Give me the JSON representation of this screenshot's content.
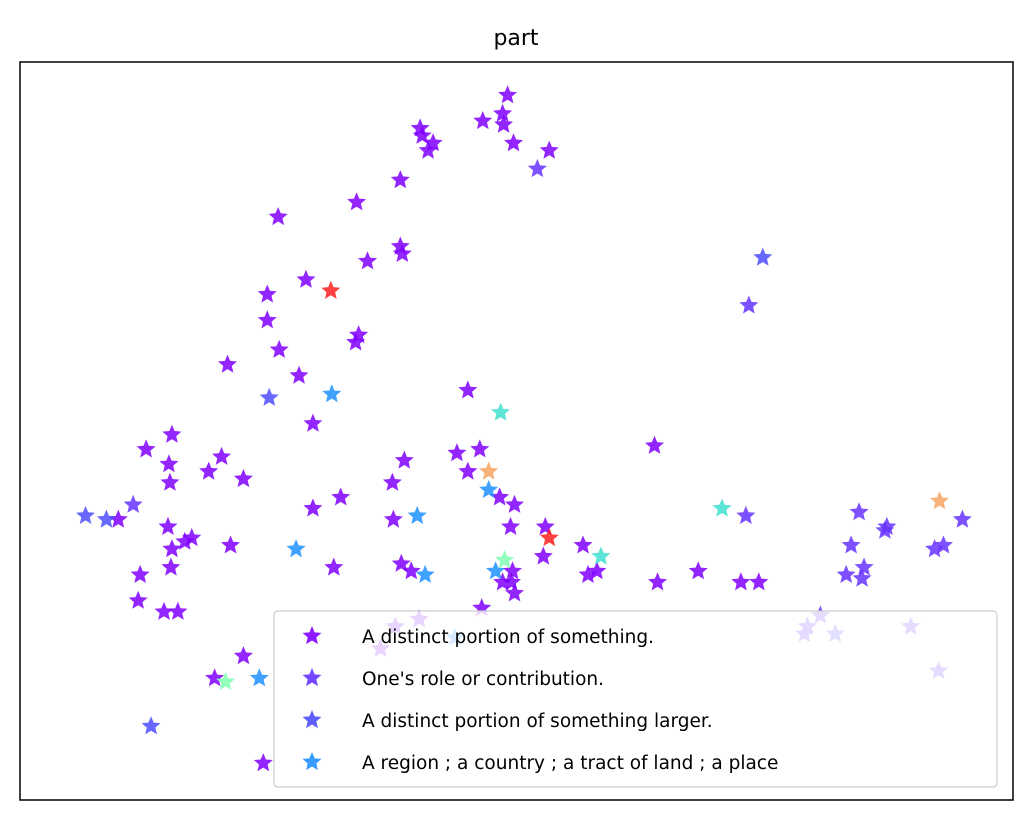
{
  "chart_data": {
    "type": "scatter",
    "title": "part",
    "xlabel": "",
    "ylabel": "",
    "axes_visible": false,
    "grid": false,
    "legend_position": "bottom-right",
    "xlim": [
      0,
      100
    ],
    "ylim": [
      0,
      100
    ],
    "series": [
      {
        "name": "A distinct portion of something.",
        "color": "#8000ff",
        "marker": "star",
        "points": [
          [
            49.1,
            95.5
          ],
          [
            48.7,
            91.5
          ],
          [
            46.6,
            92
          ],
          [
            48.6,
            93
          ],
          [
            40.3,
            91
          ],
          [
            40.5,
            90
          ],
          [
            41.6,
            89
          ],
          [
            41.1,
            88
          ],
          [
            49.7,
            89
          ],
          [
            53.3,
            88
          ],
          [
            38.3,
            84
          ],
          [
            33.9,
            81
          ],
          [
            26,
            79
          ],
          [
            38.3,
            75
          ],
          [
            38.5,
            74
          ],
          [
            35,
            73
          ],
          [
            28.8,
            70.5
          ],
          [
            24.9,
            68.5
          ],
          [
            24.9,
            65
          ],
          [
            33.8,
            62
          ],
          [
            34.1,
            63
          ],
          [
            26.1,
            61
          ],
          [
            20.9,
            59
          ],
          [
            28.1,
            57.5
          ],
          [
            45.1,
            55.5
          ],
          [
            15.3,
            49.5
          ],
          [
            12.7,
            47.5
          ],
          [
            20.3,
            46.5
          ],
          [
            15,
            45.5
          ],
          [
            19,
            44.5
          ],
          [
            22.5,
            43.5
          ],
          [
            15.1,
            43
          ],
          [
            44,
            47
          ],
          [
            46.3,
            47.5
          ],
          [
            45.1,
            44.5
          ],
          [
            38.7,
            46
          ],
          [
            37.5,
            43
          ],
          [
            48.3,
            41
          ],
          [
            49.8,
            40
          ],
          [
            32.3,
            41
          ],
          [
            29.5,
            39.5
          ],
          [
            37.6,
            38
          ],
          [
            49.4,
            37
          ],
          [
            52.9,
            37
          ],
          [
            9.9,
            38
          ],
          [
            14.9,
            37
          ],
          [
            16.6,
            35
          ],
          [
            17.3,
            35.5
          ],
          [
            21.2,
            34.5
          ],
          [
            15.3,
            34
          ],
          [
            12.1,
            30.5
          ],
          [
            31.6,
            31.5
          ],
          [
            38.4,
            32
          ],
          [
            39.4,
            31
          ],
          [
            49.6,
            31
          ],
          [
            15.2,
            31.5
          ],
          [
            11.9,
            27
          ],
          [
            14.5,
            25.5
          ],
          [
            15.9,
            25.5
          ],
          [
            40.2,
            24.5
          ],
          [
            37.8,
            23.5
          ],
          [
            49.5,
            29.5
          ],
          [
            49.8,
            28
          ],
          [
            48.6,
            29.5
          ],
          [
            52.7,
            33
          ],
          [
            64.2,
            29.5
          ],
          [
            56.7,
            34.5
          ],
          [
            57.2,
            30.5
          ],
          [
            58.1,
            31
          ],
          [
            63.9,
            48
          ],
          [
            46.5,
            26
          ],
          [
            68.3,
            31
          ],
          [
            72.6,
            29.5
          ],
          [
            74.4,
            29.5
          ],
          [
            29.5,
            51
          ],
          [
            36.3,
            20.5
          ],
          [
            22.5,
            19.5
          ],
          [
            19.6,
            16.5
          ],
          [
            24.5,
            5
          ]
        ]
      },
      {
        "name": "One's role or contribution.",
        "color": "#6633ff",
        "marker": "star",
        "points": [
          [
            52.1,
            85.5
          ],
          [
            73.4,
            67
          ],
          [
            73.1,
            38.5
          ],
          [
            84.5,
            39
          ],
          [
            87.3,
            37
          ],
          [
            83.7,
            34.5
          ],
          [
            85,
            31.5
          ],
          [
            83.2,
            30.5
          ],
          [
            84.8,
            30
          ],
          [
            92.1,
            34
          ],
          [
            94.9,
            38
          ],
          [
            93,
            34.5
          ],
          [
            89.7,
            23.5
          ],
          [
            80.6,
            25
          ],
          [
            79.3,
            23.5
          ],
          [
            79,
            22.5
          ],
          [
            92.5,
            17.5
          ],
          [
            87.1,
            36.5
          ],
          [
            11.4,
            40
          ]
        ]
      },
      {
        "name": "A distinct portion of something larger.",
        "color": "#4d4dff",
        "marker": "star",
        "points": [
          [
            74.8,
            73.5
          ],
          [
            25.1,
            54.5
          ],
          [
            6.6,
            38.5
          ],
          [
            8.7,
            38
          ],
          [
            13.2,
            10
          ],
          [
            82.1,
            22.5
          ]
        ]
      },
      {
        "name": "A region ; a country ; a tract of land ; a place",
        "color": "#1e90ff",
        "marker": "star",
        "points": [
          [
            31.4,
            55
          ],
          [
            27.8,
            34
          ],
          [
            40.8,
            30.5
          ],
          [
            47.2,
            42
          ],
          [
            40,
            38.5
          ],
          [
            47.9,
            31
          ],
          [
            24.1,
            16.5
          ],
          [
            43.8,
            22
          ]
        ]
      },
      {
        "name": "",
        "color": "#40e0d0",
        "marker": "star",
        "points": [
          [
            48.4,
            52.5
          ],
          [
            70.7,
            39.5
          ],
          [
            58.5,
            33
          ]
        ]
      },
      {
        "name": "",
        "color": "#7fffb0",
        "marker": "star",
        "points": [
          [
            48.8,
            32.5
          ],
          [
            20.7,
            16
          ]
        ]
      },
      {
        "name": "",
        "color": "#f4a460",
        "marker": "star",
        "points": [
          [
            47.2,
            44.5
          ],
          [
            92.6,
            40.5
          ]
        ]
      },
      {
        "name": "",
        "color": "#ff2020",
        "marker": "star",
        "points": [
          [
            31.3,
            69
          ],
          [
            53.3,
            35.5
          ]
        ]
      }
    ]
  }
}
